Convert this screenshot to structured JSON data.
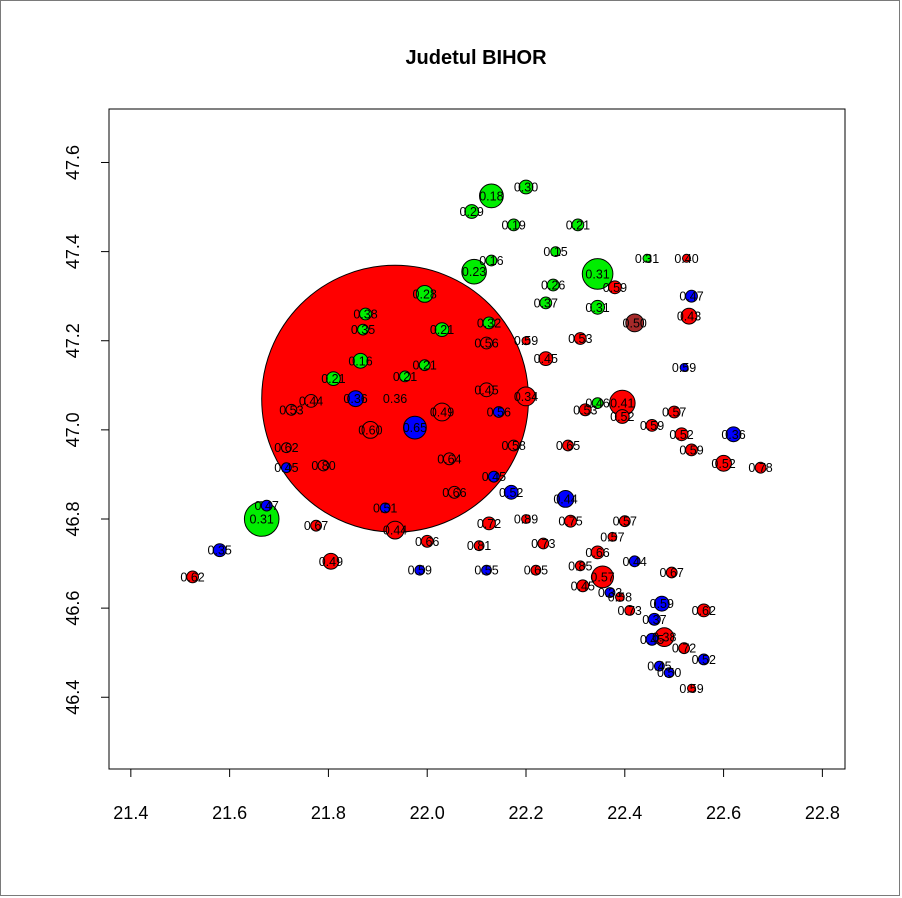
{
  "chart_data": {
    "type": "scatter",
    "title": "Judetul BIHOR",
    "xlabel": "",
    "ylabel": "",
    "xlim": [
      21.35,
      22.85
    ],
    "ylim": [
      46.24,
      47.72
    ],
    "x_ticks": [
      "21.4",
      "21.6",
      "21.8",
      "22.0",
      "22.2",
      "22.4",
      "22.6",
      "22.8"
    ],
    "y_ticks": [
      "46.4",
      "46.6",
      "46.8",
      "47.0",
      "47.2",
      "47.4",
      "47.6"
    ],
    "grid": false,
    "legend": "none",
    "colors": {
      "red": "#ff0000",
      "green": "#00ee00",
      "blue": "#0000ff",
      "brown": "#a52a2a"
    },
    "points": [
      {
        "x": 21.935,
        "y": 47.07,
        "r": 0.27,
        "label": "0.36",
        "color": "red"
      },
      {
        "x": 21.975,
        "y": 47.005,
        "r": 0.023,
        "label": "0.65",
        "color": "blue"
      },
      {
        "x": 21.885,
        "y": 47.0,
        "r": 0.017,
        "label": "0.60",
        "color": "red"
      },
      {
        "x": 22.03,
        "y": 47.04,
        "r": 0.018,
        "label": "0.49",
        "color": "red"
      },
      {
        "x": 21.855,
        "y": 47.07,
        "r": 0.016,
        "label": "0.36",
        "color": "blue"
      },
      {
        "x": 21.765,
        "y": 47.065,
        "r": 0.013,
        "label": "0.44",
        "color": "red"
      },
      {
        "x": 21.725,
        "y": 47.045,
        "r": 0.011,
        "label": "0.53",
        "color": "red"
      },
      {
        "x": 21.715,
        "y": 46.96,
        "r": 0.01,
        "label": "0.62",
        "color": "red"
      },
      {
        "x": 21.715,
        "y": 46.915,
        "r": 0.01,
        "label": "0.45",
        "color": "blue"
      },
      {
        "x": 21.79,
        "y": 46.92,
        "r": 0.011,
        "label": "0.80",
        "color": "red"
      },
      {
        "x": 22.045,
        "y": 46.935,
        "r": 0.012,
        "label": "0.64",
        "color": "red"
      },
      {
        "x": 22.055,
        "y": 46.86,
        "r": 0.012,
        "label": "0.66",
        "color": "red"
      },
      {
        "x": 21.665,
        "y": 46.8,
        "r": 0.035,
        "label": "0.31",
        "color": "green"
      },
      {
        "x": 21.675,
        "y": 46.83,
        "r": 0.011,
        "label": "0.47",
        "color": "blue"
      },
      {
        "x": 21.58,
        "y": 46.73,
        "r": 0.013,
        "label": "0.35",
        "color": "blue"
      },
      {
        "x": 21.525,
        "y": 46.67,
        "r": 0.012,
        "label": "0.62",
        "color": "red"
      },
      {
        "x": 21.775,
        "y": 46.785,
        "r": 0.011,
        "label": "0.67",
        "color": "red"
      },
      {
        "x": 21.805,
        "y": 46.705,
        "r": 0.016,
        "label": "0.49",
        "color": "red"
      },
      {
        "x": 21.915,
        "y": 46.825,
        "r": 0.01,
        "label": "0.51",
        "color": "blue"
      },
      {
        "x": 21.935,
        "y": 46.775,
        "r": 0.018,
        "label": "0.44",
        "color": "red"
      },
      {
        "x": 22.0,
        "y": 46.75,
        "r": 0.012,
        "label": "0.66",
        "color": "red"
      },
      {
        "x": 21.985,
        "y": 46.685,
        "r": 0.01,
        "label": "0.59",
        "color": "blue"
      },
      {
        "x": 22.105,
        "y": 46.74,
        "r": 0.01,
        "label": "0.81",
        "color": "red"
      },
      {
        "x": 22.12,
        "y": 46.685,
        "r": 0.01,
        "label": "0.55",
        "color": "blue"
      },
      {
        "x": 22.125,
        "y": 46.79,
        "r": 0.013,
        "label": "0.72",
        "color": "red"
      },
      {
        "x": 22.2,
        "y": 46.8,
        "r": 0.009,
        "label": "0.89",
        "color": "red"
      },
      {
        "x": 22.135,
        "y": 46.895,
        "r": 0.011,
        "label": "0.45",
        "color": "blue"
      },
      {
        "x": 22.17,
        "y": 46.86,
        "r": 0.014,
        "label": "0.52",
        "color": "blue"
      },
      {
        "x": 22.235,
        "y": 46.745,
        "r": 0.011,
        "label": "0.73",
        "color": "red"
      },
      {
        "x": 22.22,
        "y": 46.685,
        "r": 0.01,
        "label": "0.65",
        "color": "red"
      },
      {
        "x": 22.28,
        "y": 46.845,
        "r": 0.017,
        "label": "0.44",
        "color": "blue"
      },
      {
        "x": 22.29,
        "y": 46.795,
        "r": 0.012,
        "label": "0.75",
        "color": "red"
      },
      {
        "x": 22.285,
        "y": 46.965,
        "r": 0.011,
        "label": "0.65",
        "color": "red"
      },
      {
        "x": 22.175,
        "y": 46.965,
        "r": 0.011,
        "label": "0.58",
        "color": "red"
      },
      {
        "x": 22.145,
        "y": 47.04,
        "r": 0.011,
        "label": "0.56",
        "color": "blue"
      },
      {
        "x": 22.12,
        "y": 47.09,
        "r": 0.014,
        "label": "0.45",
        "color": "red"
      },
      {
        "x": 22.2,
        "y": 47.075,
        "r": 0.019,
        "label": "0.34",
        "color": "red"
      },
      {
        "x": 22.24,
        "y": 47.16,
        "r": 0.014,
        "label": "0.45",
        "color": "red"
      },
      {
        "x": 22.2,
        "y": 47.2,
        "r": 0.008,
        "label": "0.59",
        "color": "red"
      },
      {
        "x": 22.12,
        "y": 47.195,
        "r": 0.012,
        "label": "0.56",
        "color": "red"
      },
      {
        "x": 22.31,
        "y": 47.205,
        "r": 0.012,
        "label": "0.53",
        "color": "red"
      },
      {
        "x": 22.32,
        "y": 47.045,
        "r": 0.012,
        "label": "0.53",
        "color": "red"
      },
      {
        "x": 22.345,
        "y": 47.06,
        "r": 0.011,
        "label": "0.46",
        "color": "green"
      },
      {
        "x": 22.395,
        "y": 47.06,
        "r": 0.026,
        "label": "0.41",
        "color": "red"
      },
      {
        "x": 22.395,
        "y": 47.03,
        "r": 0.014,
        "label": "0.52",
        "color": "red"
      },
      {
        "x": 22.455,
        "y": 47.01,
        "r": 0.012,
        "label": "0.59",
        "color": "red"
      },
      {
        "x": 22.5,
        "y": 47.04,
        "r": 0.012,
        "label": "0.57",
        "color": "red"
      },
      {
        "x": 22.515,
        "y": 46.99,
        "r": 0.013,
        "label": "0.52",
        "color": "red"
      },
      {
        "x": 22.535,
        "y": 46.955,
        "r": 0.012,
        "label": "0.59",
        "color": "red"
      },
      {
        "x": 22.62,
        "y": 46.99,
        "r": 0.015,
        "label": "0.36",
        "color": "blue"
      },
      {
        "x": 22.6,
        "y": 46.925,
        "r": 0.016,
        "label": "0.52",
        "color": "red"
      },
      {
        "x": 22.675,
        "y": 46.915,
        "r": 0.011,
        "label": "0.78",
        "color": "red"
      },
      {
        "x": 22.42,
        "y": 47.24,
        "r": 0.018,
        "label": "0.50",
        "color": "brown"
      },
      {
        "x": 22.53,
        "y": 47.255,
        "r": 0.016,
        "label": "0.43",
        "color": "red"
      },
      {
        "x": 22.535,
        "y": 47.3,
        "r": 0.012,
        "label": "0.47",
        "color": "blue"
      },
      {
        "x": 22.52,
        "y": 47.14,
        "r": 0.008,
        "label": "0.59",
        "color": "blue"
      },
      {
        "x": 22.525,
        "y": 47.385,
        "r": 0.008,
        "label": "0.40",
        "color": "red"
      },
      {
        "x": 22.445,
        "y": 47.385,
        "r": 0.008,
        "label": "0.31",
        "color": "green"
      },
      {
        "x": 22.345,
        "y": 47.35,
        "r": 0.031,
        "label": "0.31",
        "color": "green"
      },
      {
        "x": 22.38,
        "y": 47.32,
        "r": 0.013,
        "label": "0.59",
        "color": "red"
      },
      {
        "x": 22.345,
        "y": 47.275,
        "r": 0.014,
        "label": "0.31",
        "color": "green"
      },
      {
        "x": 22.255,
        "y": 47.325,
        "r": 0.012,
        "label": "0.26",
        "color": "green"
      },
      {
        "x": 22.24,
        "y": 47.285,
        "r": 0.012,
        "label": "0.37",
        "color": "green"
      },
      {
        "x": 22.26,
        "y": 47.4,
        "r": 0.01,
        "label": "0.15",
        "color": "green"
      },
      {
        "x": 22.305,
        "y": 47.46,
        "r": 0.012,
        "label": "0.21",
        "color": "green"
      },
      {
        "x": 22.175,
        "y": 47.46,
        "r": 0.012,
        "label": "0.19",
        "color": "green"
      },
      {
        "x": 22.2,
        "y": 47.545,
        "r": 0.014,
        "label": "0.30",
        "color": "green"
      },
      {
        "x": 22.13,
        "y": 47.525,
        "r": 0.024,
        "label": "0.18",
        "color": "green"
      },
      {
        "x": 22.09,
        "y": 47.49,
        "r": 0.014,
        "label": "0.29",
        "color": "green"
      },
      {
        "x": 22.13,
        "y": 47.38,
        "r": 0.011,
        "label": "0.16",
        "color": "green"
      },
      {
        "x": 22.095,
        "y": 47.355,
        "r": 0.025,
        "label": "0.23",
        "color": "green"
      },
      {
        "x": 22.125,
        "y": 47.24,
        "r": 0.012,
        "label": "0.32",
        "color": "green"
      },
      {
        "x": 21.995,
        "y": 47.305,
        "r": 0.017,
        "label": "0.28",
        "color": "green"
      },
      {
        "x": 22.03,
        "y": 47.225,
        "r": 0.014,
        "label": "0.21",
        "color": "green"
      },
      {
        "x": 21.875,
        "y": 47.26,
        "r": 0.012,
        "label": "0.38",
        "color": "green"
      },
      {
        "x": 21.87,
        "y": 47.225,
        "r": 0.011,
        "label": "0.35",
        "color": "green"
      },
      {
        "x": 21.865,
        "y": 47.155,
        "r": 0.015,
        "label": "0.16",
        "color": "green"
      },
      {
        "x": 21.81,
        "y": 47.115,
        "r": 0.014,
        "label": "0.21",
        "color": "green"
      },
      {
        "x": 21.995,
        "y": 47.145,
        "r": 0.011,
        "label": "0.21",
        "color": "green"
      },
      {
        "x": 21.955,
        "y": 47.12,
        "r": 0.011,
        "label": "0.21",
        "color": "green"
      },
      {
        "x": 22.345,
        "y": 46.725,
        "r": 0.013,
        "label": "0.66",
        "color": "red"
      },
      {
        "x": 22.375,
        "y": 46.76,
        "r": 0.009,
        "label": "0.57",
        "color": "red"
      },
      {
        "x": 22.4,
        "y": 46.795,
        "r": 0.011,
        "label": "0.57",
        "color": "red"
      },
      {
        "x": 22.42,
        "y": 46.705,
        "r": 0.011,
        "label": "0.44",
        "color": "blue"
      },
      {
        "x": 22.495,
        "y": 46.68,
        "r": 0.011,
        "label": "0.67",
        "color": "red"
      },
      {
        "x": 22.31,
        "y": 46.695,
        "r": 0.01,
        "label": "0.85",
        "color": "red"
      },
      {
        "x": 22.355,
        "y": 46.67,
        "r": 0.022,
        "label": "0.57",
        "color": "red"
      },
      {
        "x": 22.315,
        "y": 46.65,
        "r": 0.012,
        "label": "0.45",
        "color": "red"
      },
      {
        "x": 22.37,
        "y": 46.635,
        "r": 0.01,
        "label": "0.33",
        "color": "blue"
      },
      {
        "x": 22.39,
        "y": 46.625,
        "r": 0.009,
        "label": "0.58",
        "color": "red"
      },
      {
        "x": 22.41,
        "y": 46.595,
        "r": 0.01,
        "label": "0.73",
        "color": "red"
      },
      {
        "x": 22.475,
        "y": 46.61,
        "r": 0.015,
        "label": "0.59",
        "color": "blue"
      },
      {
        "x": 22.46,
        "y": 46.575,
        "r": 0.012,
        "label": "0.37",
        "color": "blue"
      },
      {
        "x": 22.56,
        "y": 46.595,
        "r": 0.013,
        "label": "0.62",
        "color": "red"
      },
      {
        "x": 22.48,
        "y": 46.535,
        "r": 0.019,
        "label": "0.38",
        "color": "red"
      },
      {
        "x": 22.455,
        "y": 46.53,
        "r": 0.012,
        "label": "0.45",
        "color": "blue"
      },
      {
        "x": 22.52,
        "y": 46.51,
        "r": 0.011,
        "label": "0.72",
        "color": "red"
      },
      {
        "x": 22.56,
        "y": 46.485,
        "r": 0.011,
        "label": "0.52",
        "color": "blue"
      },
      {
        "x": 22.47,
        "y": 46.47,
        "r": 0.01,
        "label": "0.45",
        "color": "blue"
      },
      {
        "x": 22.49,
        "y": 46.455,
        "r": 0.01,
        "label": "0.50",
        "color": "blue"
      },
      {
        "x": 22.535,
        "y": 46.42,
        "r": 0.008,
        "label": "0.59",
        "color": "red"
      }
    ]
  }
}
